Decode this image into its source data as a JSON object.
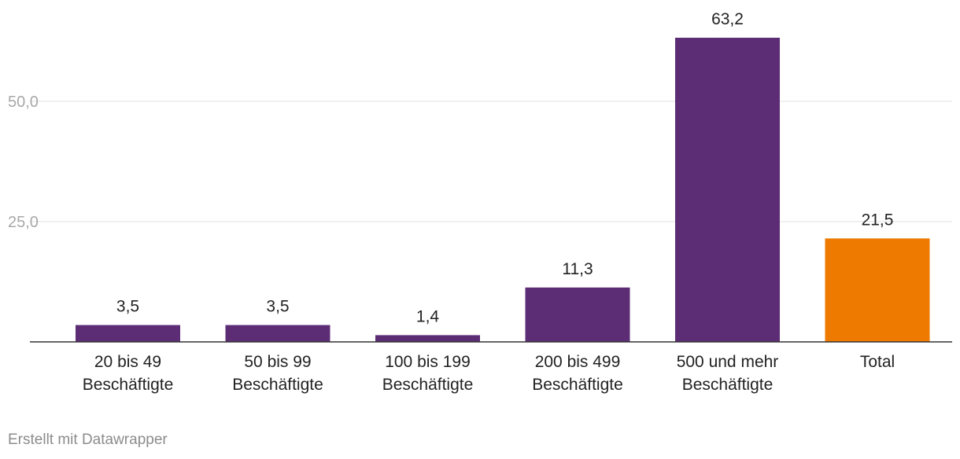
{
  "chart_data": {
    "type": "bar",
    "categories": [
      [
        "20 bis 49",
        "Beschäftigte"
      ],
      [
        "50 bis 99",
        "Beschäftigte"
      ],
      [
        "100 bis 199",
        "Beschäftigte"
      ],
      [
        "200 bis 499",
        "Beschäftigte"
      ],
      [
        "500 und mehr",
        "Beschäftigte"
      ],
      [
        "Total"
      ]
    ],
    "values": [
      3.5,
      3.5,
      1.4,
      11.3,
      63.2,
      21.5
    ],
    "value_labels": [
      "3,5",
      "3,5",
      "1,4",
      "11,3",
      "63,2",
      "21,5"
    ],
    "colors": [
      "#5c2d75",
      "#5c2d75",
      "#5c2d75",
      "#5c2d75",
      "#5c2d75",
      "#ee7a00"
    ],
    "yticks": [
      25,
      50
    ],
    "ytick_labels": [
      "25,0",
      "50,0"
    ],
    "ylim": [
      0,
      63.2
    ],
    "grid": true,
    "title": "",
    "xlabel": "",
    "ylabel": ""
  },
  "footer": {
    "credit": "Erstellt mit Datawrapper"
  }
}
